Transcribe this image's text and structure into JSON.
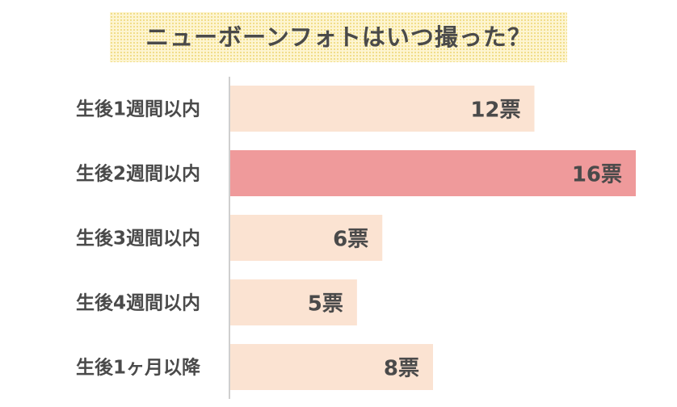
{
  "chart_data": {
    "type": "bar",
    "orientation": "horizontal",
    "title": "ニューボーンフォトはいつ撮った？",
    "categories": [
      "生後1週間以内",
      "生後2週間以内",
      "生後3週間以内",
      "生後4週間以内",
      "生後1ヶ月以降"
    ],
    "values": [
      12,
      16,
      6,
      5,
      8
    ],
    "value_labels": [
      "12票",
      "16票",
      "6票",
      "5票",
      "8票"
    ],
    "xlim": [
      0,
      16
    ],
    "grid": false,
    "legend": "none",
    "highlight_index": 1,
    "colors": {
      "bar": "#fbe3d2",
      "highlight": "#ef9a9b",
      "axis": "#bfbfbf",
      "text": "#4a4a4a",
      "title_bg": "#fdf5d2"
    }
  }
}
